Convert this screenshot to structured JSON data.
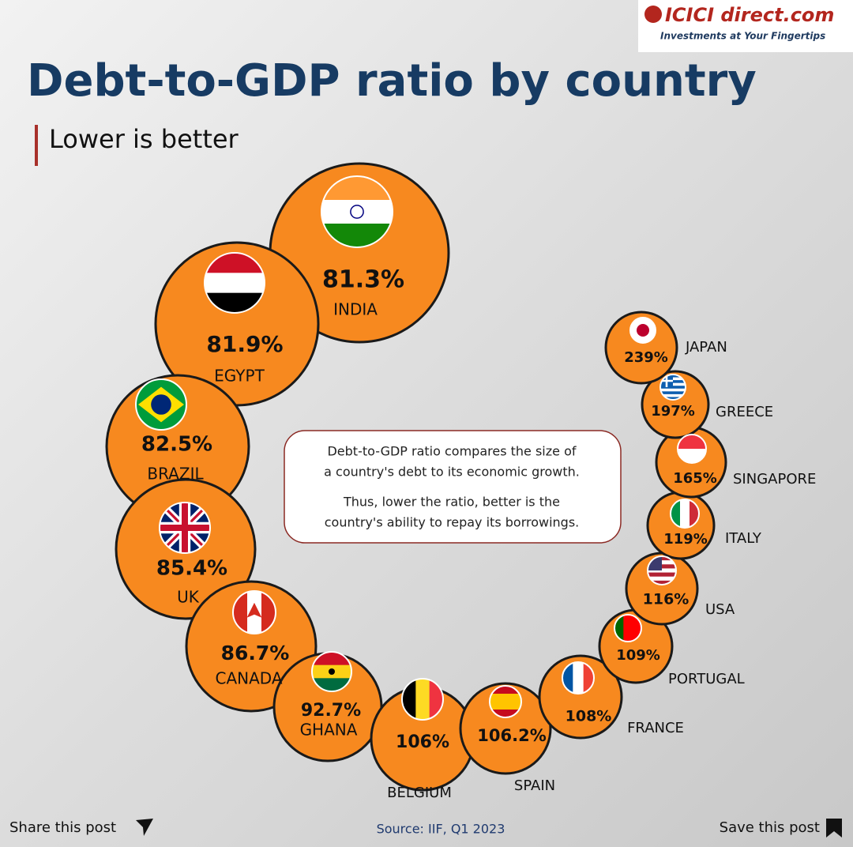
{
  "brand": {
    "name": "ICICI direct.com",
    "tagline": "Investments at Your Fingertips"
  },
  "title": "Debt-to-GDP ratio by country",
  "subtitle": "Lower is better",
  "note": [
    "Debt-to-GDP ratio compares the size of",
    "a country's debt to its economic growth.",
    "Thus, lower the ratio, better is the",
    "country's ability to repay its borrowings."
  ],
  "countries": [
    {
      "name": "INDIA",
      "value": "81.3%"
    },
    {
      "name": "EGYPT",
      "value": "81.9%"
    },
    {
      "name": "BRAZIL",
      "value": "82.5%"
    },
    {
      "name": "UK",
      "value": "85.4%"
    },
    {
      "name": "CANADA",
      "value": "86.7%"
    },
    {
      "name": "GHANA",
      "value": "92.7%"
    },
    {
      "name": "BELGIUM",
      "value": "106%"
    },
    {
      "name": "SPAIN",
      "value": "106.2%"
    },
    {
      "name": "FRANCE",
      "value": "108%"
    },
    {
      "name": "PORTUGAL",
      "value": "109%"
    },
    {
      "name": "USA",
      "value": "116%"
    },
    {
      "name": "ITALY",
      "value": "119%"
    },
    {
      "name": "SINGAPORE",
      "value": "165%"
    },
    {
      "name": "GREECE",
      "value": "197%"
    },
    {
      "name": "JAPAN",
      "value": "239%"
    }
  ],
  "footer": {
    "share": "Share this post",
    "source": "Source: IIF, Q1 2023",
    "save": "Save this post"
  }
}
